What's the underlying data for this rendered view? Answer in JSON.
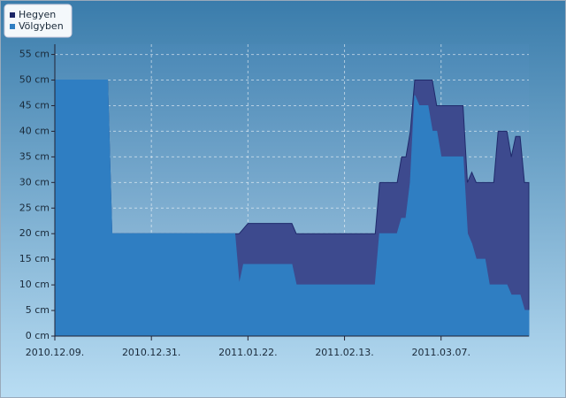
{
  "chart_data": {
    "type": "area",
    "x": [
      "2010.12.09",
      "2010.12.21",
      "2010.12.22",
      "2011.01.19",
      "2011.01.20",
      "2011.01.21",
      "2011.01.22",
      "2011.02.01",
      "2011.02.02",
      "2011.02.20",
      "2011.02.21",
      "2011.02.25",
      "2011.02.26",
      "2011.02.27",
      "2011.02.28",
      "2011.03.01",
      "2011.03.02",
      "2011.03.04",
      "2011.03.05",
      "2011.03.06",
      "2011.03.07",
      "2011.03.12",
      "2011.03.13",
      "2011.03.14",
      "2011.03.15",
      "2011.03.17",
      "2011.03.18",
      "2011.03.19",
      "2011.03.20",
      "2011.03.22",
      "2011.03.23",
      "2011.03.24",
      "2011.03.25",
      "2011.03.26",
      "2011.03.27"
    ],
    "series": [
      {
        "name": "Hegyen",
        "color": "#3d4a8e",
        "values": [
          50,
          50,
          20,
          20,
          20,
          21,
          22,
          22,
          20,
          20,
          30,
          30,
          35,
          35,
          40,
          50,
          50,
          50,
          50,
          45,
          45,
          45,
          30,
          32,
          30,
          30,
          30,
          30,
          40,
          40,
          35,
          39,
          39,
          30,
          30
        ]
      },
      {
        "name": "Völgyben",
        "color": "#2f7ec2",
        "values": [
          50,
          50,
          20,
          20,
          10,
          14,
          14,
          14,
          10,
          10,
          20,
          20,
          23,
          23,
          30,
          47,
          45,
          45,
          40,
          40,
          35,
          35,
          20,
          18,
          15,
          15,
          10,
          10,
          10,
          10,
          8,
          8,
          8,
          5,
          5
        ]
      }
    ],
    "xlim": [
      "2010.12.09",
      "2011.03.27"
    ],
    "xticks": [
      {
        "value": "2010.12.09",
        "label": "2010.12.09."
      },
      {
        "value": "2010.12.31",
        "label": "2010.12.31."
      },
      {
        "value": "2011.01.22",
        "label": "2011.01.22."
      },
      {
        "value": "2011.02.13",
        "label": "2011.02.13."
      },
      {
        "value": "2011.03.07",
        "label": "2011.03.07."
      }
    ],
    "ylim": [
      0,
      57
    ],
    "yticks": [
      {
        "value": 0,
        "label": "0 cm"
      },
      {
        "value": 5,
        "label": "5 cm"
      },
      {
        "value": 10,
        "label": "10 cm"
      },
      {
        "value": 15,
        "label": "15 cm"
      },
      {
        "value": 20,
        "label": "20 cm"
      },
      {
        "value": 25,
        "label": "25 cm"
      },
      {
        "value": 30,
        "label": "30 cm"
      },
      {
        "value": 35,
        "label": "35 cm"
      },
      {
        "value": 40,
        "label": "40 cm"
      },
      {
        "value": 45,
        "label": "45 cm"
      },
      {
        "value": 50,
        "label": "50 cm"
      },
      {
        "value": 55,
        "label": "55 cm"
      }
    ],
    "grid": true,
    "legend": "top-left"
  }
}
